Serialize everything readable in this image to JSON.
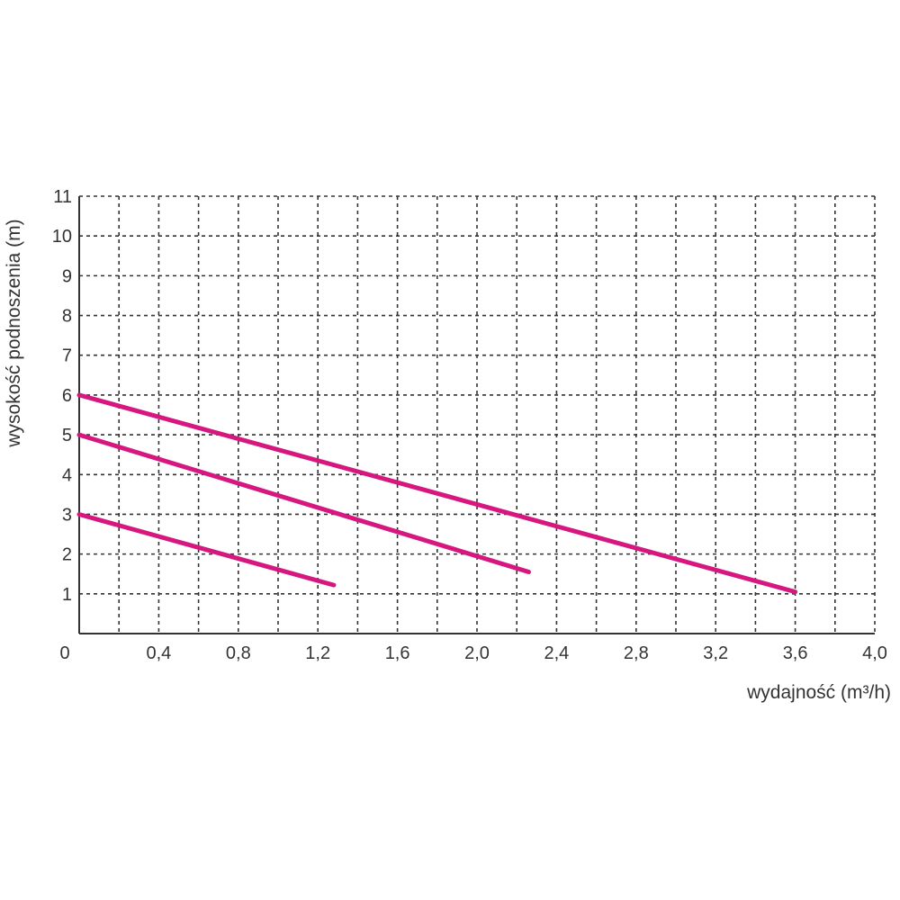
{
  "chart_data": {
    "type": "line",
    "title": "",
    "xlabel": "wydajność (m³/h)",
    "ylabel": "wysokość podnoszenia (m)",
    "xlim": [
      0,
      4.0
    ],
    "ylim": [
      0,
      11
    ],
    "x_ticks": [
      "0",
      "0,4",
      "0,8",
      "1,2",
      "1,6",
      "2,0",
      "2,4",
      "2,8",
      "3,2",
      "3,6",
      "4,0"
    ],
    "x_tick_values": [
      0,
      0.4,
      0.8,
      1.2,
      1.6,
      2.0,
      2.4,
      2.8,
      3.2,
      3.6,
      4.0
    ],
    "y_ticks": [
      "1",
      "2",
      "3",
      "4",
      "5",
      "6",
      "7",
      "8",
      "9",
      "10",
      "11"
    ],
    "y_tick_values": [
      1,
      2,
      3,
      4,
      5,
      6,
      7,
      8,
      9,
      10,
      11
    ],
    "grid": true,
    "line_color": "#d6177f",
    "series": [
      {
        "x": [
          0,
          3.6
        ],
        "values": [
          6.0,
          1.05
        ]
      },
      {
        "x": [
          0,
          2.26
        ],
        "values": [
          5.0,
          1.55
        ]
      },
      {
        "x": [
          0,
          1.28
        ],
        "values": [
          3.0,
          1.22
        ]
      }
    ]
  }
}
